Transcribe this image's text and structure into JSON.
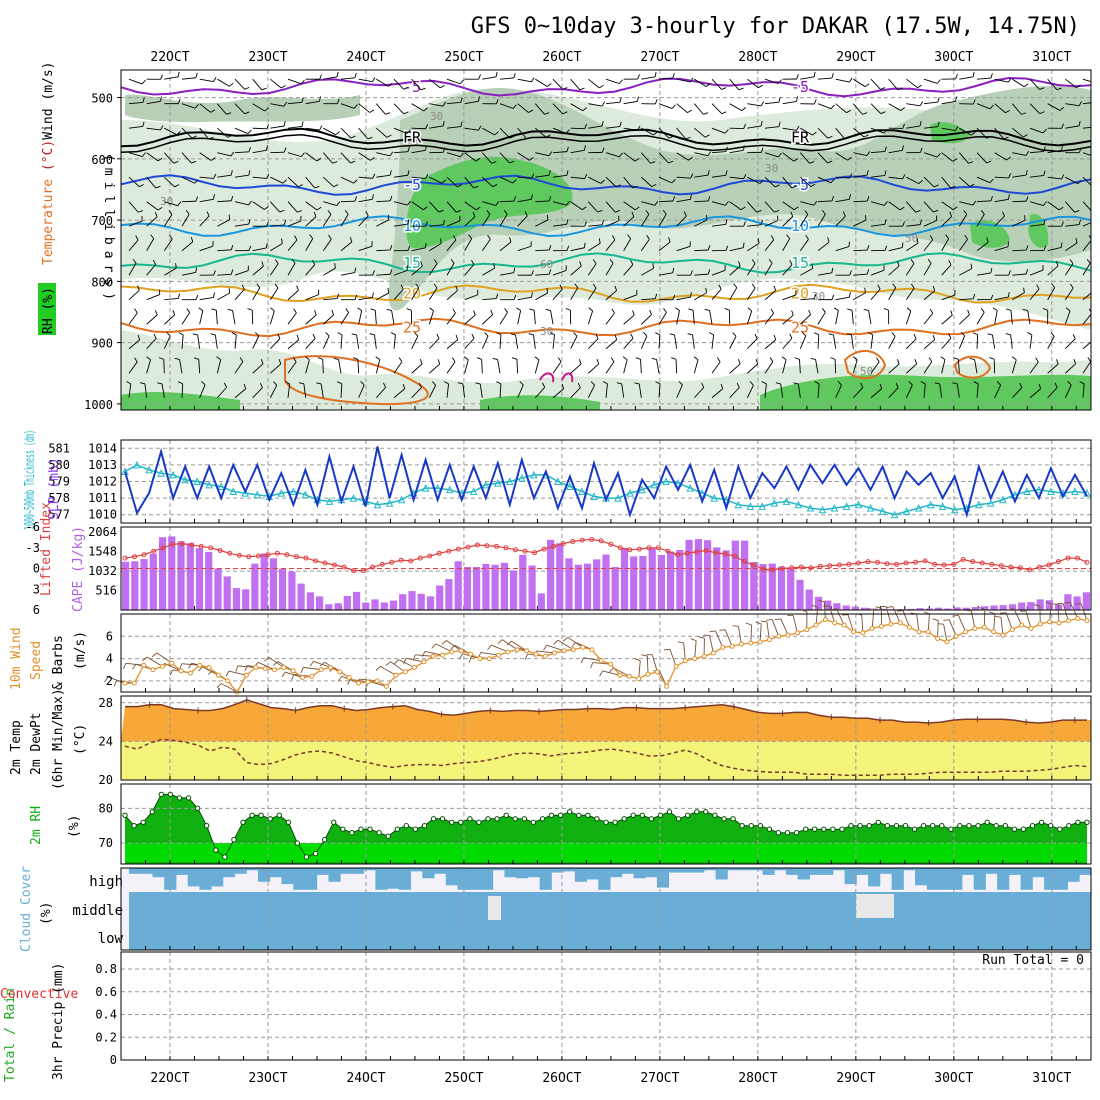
{
  "title": "GFS 0~10day 3-hourly for DAKAR (17.5W, 14.75N)",
  "colors": {
    "rh_light": "#dcebdc",
    "rh_mid": "#b8cfb8",
    "rh_dark": "#5fc85f",
    "temp_purple": "#8a1fc0",
    "temp_black": "#000000",
    "temp_blue": "#1f4ad8",
    "temp_lblue": "#1a96e0",
    "temp_teal": "#16b890",
    "temp_yellow": "#e0a020",
    "temp_orange": "#e07020",
    "thickness": "#22b8c8",
    "slp": "#1838c8",
    "cape": "#c070f0",
    "li": "#e04040",
    "wind10": "#e0902a",
    "barb": "#7a5030",
    "temp2m": "#f8a838",
    "dew2m": "#f4f47a",
    "rh2m": "#00e000",
    "rh2m_dark": "#10b010",
    "cloud": "#6aaed8",
    "cloud_bg": "#f4f2f8"
  },
  "chart_data": {
    "type": "meteogram",
    "time_axis": {
      "start_day": 21.5,
      "end_day": 31.4,
      "date_labels": [
        "22OCT",
        "23OCT",
        "24OCT",
        "25OCT",
        "26OCT",
        "27OCT",
        "28OCT",
        "29OCT",
        "30OCT",
        "31OCT"
      ]
    },
    "panels": {
      "upper": {
        "ylabel_parts": [
          "Temperature",
          " (°C)",
          "Wind",
          " (m/s)"
        ],
        "rh_label": "RH (%)",
        "pressure_label": "(millibars)",
        "yticks": [
          500,
          600,
          700,
          800,
          900,
          1000
        ],
        "ylim": [
          455,
          1010
        ],
        "isotherms": [
          {
            "label": "-5",
            "pressure": 483,
            "color_key": "temp_purple"
          },
          {
            "label": "FR",
            "pressure": 565,
            "color_key": "temp_black"
          },
          {
            "label": "-5",
            "pressure": 643,
            "color_key": "temp_blue"
          },
          {
            "label": "10",
            "pressure": 710,
            "color_key": "temp_lblue"
          },
          {
            "label": "15",
            "pressure": 770,
            "color_key": "temp_teal"
          },
          {
            "label": "20",
            "pressure": 820,
            "color_key": "temp_yellow"
          },
          {
            "label": "25",
            "pressure": 875,
            "color_key": "temp_orange"
          }
        ],
        "rh_contour_labels": [
          "30",
          "50",
          "60"
        ]
      },
      "thickness_slp": {
        "ylabel_left": "1000~500mb Thickness (dm)",
        "ylabel_right": "SLP (mb)",
        "thickness_ticks": [
          577,
          578,
          579,
          580,
          581
        ],
        "slp_ticks": [
          1010,
          1011,
          1012,
          1013,
          1014
        ],
        "slp_range": [
          1009.5,
          1014.5
        ],
        "slp_values": [
          1012.6,
          1010.1,
          1011.3,
          1013.8,
          1011.0,
          1012.9,
          1011.0,
          1012.9,
          1011.0,
          1013.0,
          1011.4,
          1013.0,
          1010.9,
          1012.5,
          1010.6,
          1012.7,
          1010.6,
          1013.5,
          1010.8,
          1012.9,
          1010.5,
          1014.1,
          1011.0,
          1013.6,
          1010.9,
          1013.3,
          1010.9,
          1013.0,
          1010.9,
          1012.9,
          1011.0,
          1013.1,
          1010.6,
          1013.3,
          1011.0,
          1012.6,
          1010.4,
          1012.3,
          1010.4,
          1013.1,
          1010.9,
          1012.5,
          1010.0,
          1012.1,
          1011.0,
          1012.9,
          1011.5,
          1013.0,
          1010.8,
          1012.7,
          1010.4,
          1012.9,
          1011.0,
          1012.5,
          1011.6,
          1012.9,
          1011.5,
          1013.0,
          1011.9,
          1013.0,
          1011.8,
          1012.8,
          1011.5,
          1012.9,
          1011.0,
          1012.6,
          1011.8,
          1012.5,
          1011.0,
          1012.3,
          1010.0,
          1012.9,
          1011.0,
          1012.6,
          1010.8,
          1012.4,
          1011.0,
          1012.8,
          1011.1,
          1012.4,
          1011.1
        ],
        "thickness_values": [
          579.6,
          580.0,
          579.7,
          579.5,
          579.4,
          579.1,
          579.0,
          578.8,
          578.7,
          578.4,
          578.3,
          578.2,
          578.1,
          578.3,
          578.4,
          578.2,
          577.9,
          577.8,
          577.9,
          578.0,
          577.8,
          577.6,
          577.7,
          577.9,
          578.3,
          578.6,
          578.6,
          578.5,
          578.3,
          578.4,
          578.8,
          578.9,
          579.0,
          579.2,
          579.4,
          579.4,
          579.0,
          578.7,
          578.4,
          578.1,
          578.0,
          578.0,
          578.3,
          578.5,
          578.8,
          579.0,
          578.9,
          578.6,
          578.3,
          578.0,
          577.9,
          577.6,
          577.5,
          577.5,
          577.7,
          577.8,
          577.6,
          577.4,
          577.3,
          577.4,
          577.5,
          577.6,
          577.4,
          577.2,
          577.0,
          577.2,
          577.4,
          577.6,
          577.5,
          577.3,
          577.4,
          577.6,
          577.7,
          577.9,
          578.2,
          578.4,
          578.5,
          578.4,
          578.3,
          578.4,
          578.3
        ]
      },
      "li_cape": {
        "ylabel_left": "Lifted Index",
        "ylabel_right": "CAPE (J/kg)",
        "li_ticks": [
          -6,
          -3,
          0,
          3,
          6
        ],
        "cape_ticks": [
          516,
          1032,
          1548,
          2064
        ],
        "cape_values": [
          1280,
          1290,
          1350,
          1490,
          1930,
          1950,
          1820,
          1770,
          1640,
          1540,
          1100,
          890,
          580,
          550,
          1230,
          1500,
          1370,
          1090,
          1020,
          700,
          470,
          360,
          150,
          180,
          370,
          480,
          200,
          280,
          200,
          250,
          420,
          500,
          430,
          360,
          650,
          820,
          1290,
          1140,
          1140,
          1220,
          1200,
          1250,
          1050,
          1460,
          1180,
          440,
          1860,
          1770,
          1370,
          1200,
          1230,
          1340,
          1470,
          1140,
          1640,
          1420,
          1430,
          1640,
          1460,
          1550,
          1590,
          1860,
          1880,
          1850,
          1660,
          1580,
          1840,
          1840,
          1270,
          1220,
          1230,
          1150,
          1100,
          800,
          540,
          350,
          250,
          180,
          120,
          90,
          60,
          40,
          30,
          20,
          20,
          30,
          50,
          40,
          60,
          40,
          70,
          60,
          80,
          100,
          120,
          130,
          150,
          200,
          210,
          280,
          260,
          150,
          420,
          360,
          470
        ],
        "li_values": [
          -1.5,
          -1.7,
          -2.0,
          -2.5,
          -3.0,
          -3.5,
          -3.6,
          -3.4,
          -3.2,
          -3.0,
          -2.6,
          -2.2,
          -1.9,
          -1.7,
          -1.8,
          -2.0,
          -2.2,
          -2.0,
          -1.7,
          -1.5,
          -1.1,
          -0.8,
          -0.5,
          -0.2,
          0.3,
          0.3,
          -0.2,
          -0.6,
          -0.9,
          -1.2,
          -1.1,
          -1.5,
          -1.8,
          -2.2,
          -2.5,
          -2.8,
          -3.1,
          -3.4,
          -3.3,
          -3.2,
          -3.0,
          -2.7,
          -2.5,
          -2.3,
          -2.8,
          -3.2,
          -3.6,
          -3.9,
          -4.1,
          -4.2,
          -4.0,
          -3.5,
          -3.0,
          -2.7,
          -2.8,
          -3.0,
          -3.0,
          -2.5,
          -2.0,
          -2.2,
          -2.4,
          -2.6,
          -2.3,
          -2.1,
          -1.8,
          -1.0,
          -0.5,
          0.1,
          0.2,
          0.0,
          -0.1,
          -0.2,
          -0.1,
          -0.3,
          -0.4,
          -0.5,
          -0.6,
          -0.8,
          -1.0,
          -0.9,
          -0.7,
          -0.6,
          -0.8,
          -0.9,
          -1.1,
          -0.6,
          -0.5,
          -0.6,
          -1.3,
          -1.0,
          -0.8,
          -0.6,
          -0.4,
          -0.2,
          -0.1,
          0.2,
          -0.2,
          -0.5,
          -1.0,
          -1.5,
          -1.5,
          -0.9
        ]
      },
      "wind10": {
        "ylabel": [
          "10m Wind",
          "Speed",
          "& Barbs",
          "(m/s)"
        ],
        "yticks": [
          2,
          4,
          6
        ],
        "ylim": [
          1,
          8
        ],
        "values": [
          1.8,
          1.8,
          3.4,
          3.0,
          3.3,
          3.6,
          2.9,
          2.7,
          3.4,
          3.2,
          2.5,
          2.0,
          1.0,
          2.5,
          3.2,
          3.1,
          3.0,
          3.2,
          2.9,
          2.3,
          2.4,
          3.0,
          3.2,
          2.8,
          2.3,
          1.8,
          1.9,
          2.0,
          1.5,
          2.5,
          2.8,
          3.2,
          3.7,
          4.2,
          4.3,
          4.6,
          4.7,
          4.4,
          4.0,
          4.0,
          4.3,
          4.6,
          4.8,
          4.7,
          4.4,
          4.2,
          4.5,
          4.7,
          4.8,
          5.0,
          4.8,
          3.8,
          3.5,
          2.5,
          2.4,
          2.2,
          2.6,
          2.8,
          1.5,
          3.3,
          3.8,
          4.0,
          4.2,
          4.5,
          5.0,
          5.1,
          5.3,
          5.4,
          5.5,
          5.7,
          6.0,
          6.1,
          6.3,
          6.6,
          7.0,
          7.5,
          7.2,
          7.0,
          6.4,
          6.3,
          6.7,
          6.9,
          7.1,
          7.2,
          6.8,
          6.4,
          6.4,
          5.8,
          5.5,
          6.0,
          6.4,
          6.7,
          6.8,
          6.4,
          6.1,
          6.6,
          7.0,
          6.7,
          7.1,
          7.3,
          7.2,
          7.4,
          7.6,
          7.4
        ]
      },
      "temp2m": {
        "ylabel": [
          "2m Temp",
          "2m DewPt",
          "(6hr Min/Max)",
          "(°C)"
        ],
        "yticks": [
          20,
          24,
          28
        ],
        "ylim": [
          20,
          28.7
        ],
        "temp_values": [
          27.6,
          27.6,
          27.8,
          27.8,
          27.4,
          27.3,
          27.2,
          27.2,
          27.4,
          27.8,
          28.3,
          27.9,
          27.5,
          27.4,
          27.2,
          27.5,
          27.7,
          27.7,
          27.4,
          27.2,
          27.3,
          27.5,
          27.6,
          27.7,
          27.3,
          27.1,
          26.8,
          26.7,
          26.9,
          27.1,
          27.2,
          27.1,
          27.2,
          27.2,
          27.1,
          27.2,
          27.3,
          27.3,
          27.4,
          27.4,
          27.3,
          27.5,
          27.5,
          27.4,
          27.4,
          27.4,
          27.5,
          27.6,
          27.7,
          27.8,
          27.6,
          27.3,
          27.0,
          26.9,
          26.9,
          27.0,
          27.0,
          26.7,
          26.5,
          26.5,
          26.4,
          26.4,
          26.2,
          26.2,
          26.0,
          26.0,
          25.9,
          26.0,
          26.2,
          26.3,
          26.3,
          26.3,
          26.3,
          26.2,
          26.0,
          25.9,
          26.0,
          26.2,
          26.2,
          26.2
        ],
        "dew_values": [
          23.5,
          23.2,
          23.8,
          24.2,
          24.1,
          23.9,
          23.6,
          23.0,
          23.4,
          23.2,
          21.8,
          21.6,
          21.7,
          22.1,
          22.6,
          22.9,
          23.0,
          22.8,
          22.4,
          22.0,
          21.8,
          21.5,
          21.3,
          21.5,
          21.6,
          21.6,
          21.5,
          21.7,
          21.8,
          21.9,
          22.1,
          22.4,
          22.7,
          22.8,
          22.7,
          22.5,
          22.7,
          22.8,
          22.9,
          23.1,
          23.2,
          23.0,
          22.8,
          22.5,
          22.5,
          22.8,
          23.1,
          22.7,
          22.0,
          21.5,
          21.2,
          21.0,
          20.9,
          20.8,
          20.8,
          20.8,
          20.6,
          20.6,
          20.6,
          20.5,
          20.5,
          20.5,
          20.5,
          20.6,
          20.6,
          20.6,
          20.7,
          20.8,
          20.8,
          20.8,
          20.8,
          20.8,
          20.9,
          20.9,
          20.9,
          21.0,
          21.1,
          21.3,
          21.5,
          21.4
        ]
      },
      "rh2m": {
        "ylabel": "2m RH",
        "ylabel_units": "(%)",
        "yticks": [
          70,
          80
        ],
        "ylim": [
          64,
          87
        ],
        "values": [
          78,
          75,
          76,
          79,
          84,
          84,
          83,
          83,
          80,
          75,
          68,
          66,
          71,
          76,
          78,
          78,
          77,
          78,
          76,
          70,
          66,
          67,
          71,
          76,
          74,
          73,
          74,
          74,
          73,
          72,
          74,
          75,
          74,
          75,
          77,
          77,
          76,
          76,
          77,
          76,
          77,
          77,
          78,
          77,
          77,
          76,
          77,
          78,
          78,
          79,
          78,
          78,
          77,
          76,
          76,
          77,
          78,
          78,
          77,
          78,
          79,
          77,
          78,
          79,
          79,
          78,
          77,
          77,
          75,
          75,
          75,
          74,
          73,
          73,
          73,
          74,
          74,
          74,
          74,
          74,
          75,
          75,
          75,
          76,
          75,
          75,
          75,
          74,
          75,
          75,
          75,
          74,
          75,
          75,
          75,
          76,
          75,
          75,
          74,
          74,
          75,
          76,
          75,
          74,
          75,
          76,
          76
        ]
      },
      "cloud": {
        "ylabel": "Cloud Cover",
        "ylabel_units": "(%)",
        "layer_labels": [
          "high",
          "middle",
          "low"
        ],
        "high_values": [
          25,
          25,
          40,
          95,
          30,
          80,
          95,
          80,
          40,
          25,
          10,
          60,
          40,
          70,
          95,
          95,
          30,
          60,
          25,
          25,
          10,
          95,
          90,
          95,
          15,
          45,
          25,
          75,
          95,
          95,
          95,
          10,
          40,
          45,
          40,
          95,
          20,
          15,
          60,
          50,
          95,
          40,
          25,
          45,
          40,
          85,
          20,
          20,
          20,
          10,
          50,
          10,
          10,
          10,
          30,
          10,
          30,
          50,
          30,
          30,
          10,
          70,
          30,
          80,
          25,
          95,
          10,
          75,
          95,
          95,
          95,
          30,
          95,
          25,
          95,
          30,
          95,
          40,
          95,
          95,
          60,
          30
        ]
      },
      "precip": {
        "ylabel_parts": [
          "Total / Rain",
          "Convective",
          "3hr Precip (mm)"
        ],
        "yticks": [
          "0",
          "0.2",
          "0.4",
          "0.6",
          "0.8"
        ],
        "run_total": "Run Total = 0"
      }
    }
  }
}
